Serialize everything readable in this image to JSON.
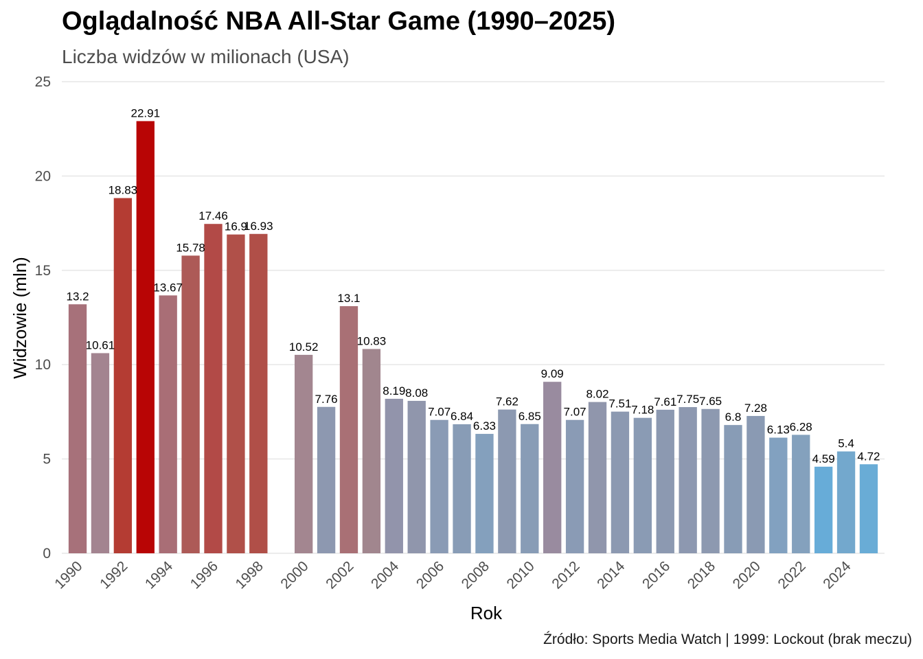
{
  "chart_data": {
    "type": "bar",
    "title": "Oglądalność NBA All-Star Game (1990–2025)",
    "subtitle": "Liczba widzów w milionach (USA)",
    "xlabel": "Rok",
    "ylabel": "Widzowie (mln)",
    "caption": "Źródło: Sports Media Watch | 1999: Lockout (brak meczu)",
    "ylim": [
      0,
      25
    ],
    "yticks": [
      0,
      5,
      10,
      15,
      20,
      25
    ],
    "xticks": [
      1990,
      1992,
      1994,
      1996,
      1998,
      2000,
      2002,
      2004,
      2006,
      2008,
      2010,
      2012,
      2014,
      2016,
      2018,
      2020,
      2022,
      2024
    ],
    "xlim": [
      1989.3,
      2025.7
    ],
    "grid": true,
    "legend": "none",
    "data": [
      {
        "year": 1990,
        "value": 13.2,
        "color": "#a7717a"
      },
      {
        "year": 1991,
        "value": 10.61,
        "color": "#a38490"
      },
      {
        "year": 1992,
        "value": 18.83,
        "color": "#b43c33"
      },
      {
        "year": 1993,
        "value": 22.91,
        "color": "#b80505"
      },
      {
        "year": 1994,
        "value": 13.67,
        "color": "#a96e76"
      },
      {
        "year": 1995,
        "value": 15.78,
        "color": "#ad5a57"
      },
      {
        "year": 1996,
        "value": 17.46,
        "color": "#b24a47"
      },
      {
        "year": 1997,
        "value": 16.9,
        "color": "#b05049"
      },
      {
        "year": 1998,
        "value": 16.93,
        "color": "#b04f48"
      },
      {
        "year": 2000,
        "value": 10.52,
        "color": "#a38690"
      },
      {
        "year": 2001,
        "value": 7.76,
        "color": "#8d98b0"
      },
      {
        "year": 2002,
        "value": 13.1,
        "color": "#a97075"
      },
      {
        "year": 2003,
        "value": 10.83,
        "color": "#a1868e"
      },
      {
        "year": 2004,
        "value": 8.19,
        "color": "#9294ab"
      },
      {
        "year": 2005,
        "value": 8.08,
        "color": "#9096ac"
      },
      {
        "year": 2006,
        "value": 7.07,
        "color": "#8a9bb5"
      },
      {
        "year": 2007,
        "value": 6.84,
        "color": "#889cb6"
      },
      {
        "year": 2008,
        "value": 6.33,
        "color": "#84a0bd"
      },
      {
        "year": 2009,
        "value": 7.62,
        "color": "#8c99b1"
      },
      {
        "year": 2010,
        "value": 6.85,
        "color": "#889cb6"
      },
      {
        "year": 2011,
        "value": 9.09,
        "color": "#998b9f"
      },
      {
        "year": 2012,
        "value": 7.07,
        "color": "#8a9bb5"
      },
      {
        "year": 2013,
        "value": 8.02,
        "color": "#9096ac"
      },
      {
        "year": 2014,
        "value": 7.51,
        "color": "#8c99b1"
      },
      {
        "year": 2015,
        "value": 7.18,
        "color": "#8a9bb4"
      },
      {
        "year": 2016,
        "value": 7.61,
        "color": "#8c99b1"
      },
      {
        "year": 2017,
        "value": 7.75,
        "color": "#8d98b0"
      },
      {
        "year": 2018,
        "value": 7.65,
        "color": "#8d99b0"
      },
      {
        "year": 2019,
        "value": 6.8,
        "color": "#889cb6"
      },
      {
        "year": 2020,
        "value": 7.28,
        "color": "#8a9ab3"
      },
      {
        "year": 2021,
        "value": 6.13,
        "color": "#82a1c0"
      },
      {
        "year": 2022,
        "value": 6.28,
        "color": "#84a1bd"
      },
      {
        "year": 2023,
        "value": 4.59,
        "color": "#67acd8"
      },
      {
        "year": 2024,
        "value": 5.4,
        "color": "#73a8cd"
      },
      {
        "year": 2025,
        "value": 4.72,
        "color": "#69acd6"
      }
    ]
  }
}
